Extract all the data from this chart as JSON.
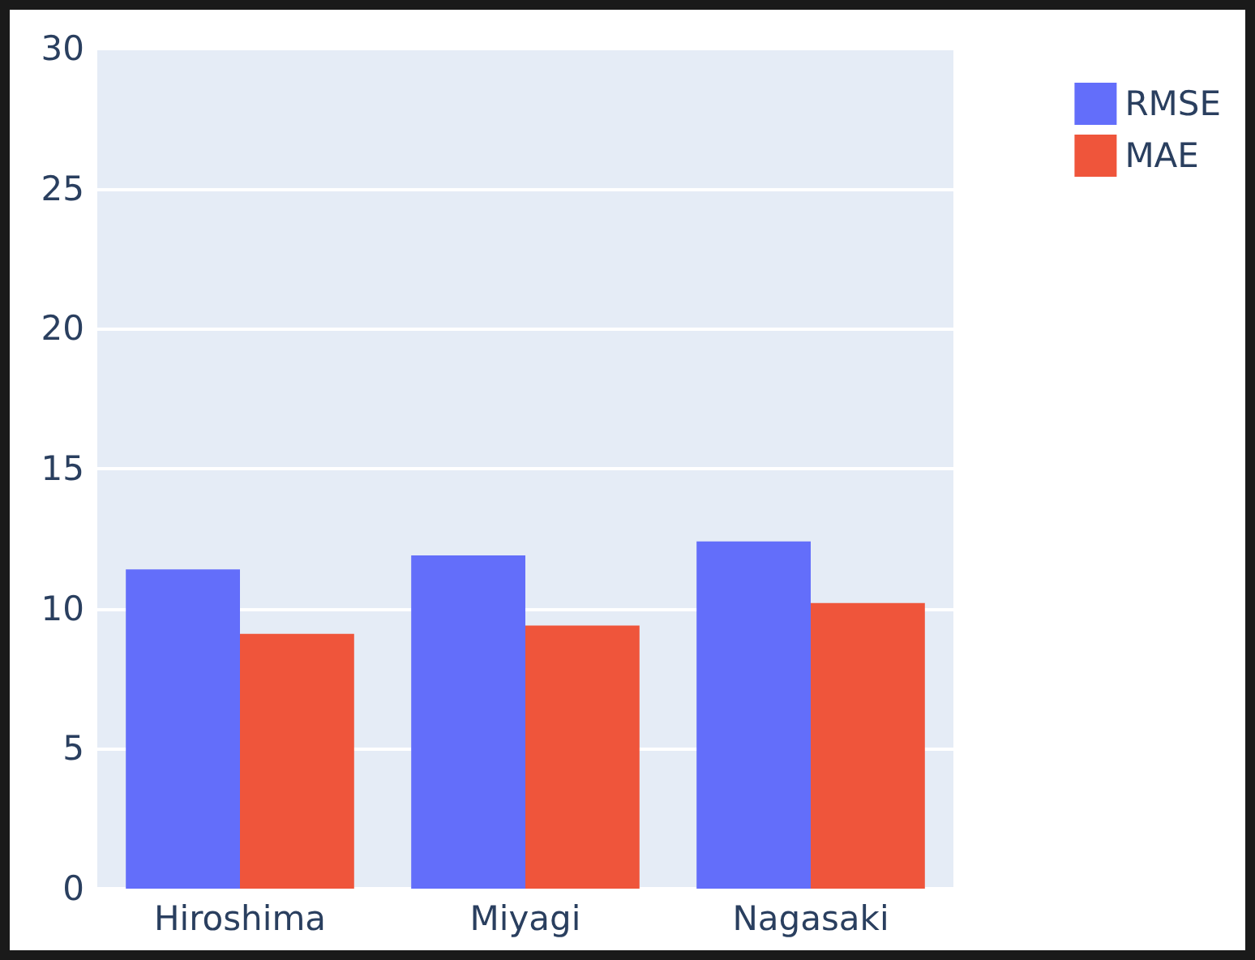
{
  "chart_data": {
    "type": "bar",
    "categories": [
      "Hiroshima",
      "Miyagi",
      "Nagasaki"
    ],
    "series": [
      {
        "name": "RMSE",
        "color": "#636efa",
        "values": [
          11.4,
          11.9,
          12.4
        ]
      },
      {
        "name": "MAE",
        "color": "#ef553b",
        "values": [
          9.1,
          9.4,
          10.2
        ]
      }
    ],
    "ylim": [
      0,
      30
    ],
    "yticks": [
      0,
      5,
      10,
      15,
      20,
      25,
      30
    ],
    "grid": "y",
    "legend": "top right"
  }
}
